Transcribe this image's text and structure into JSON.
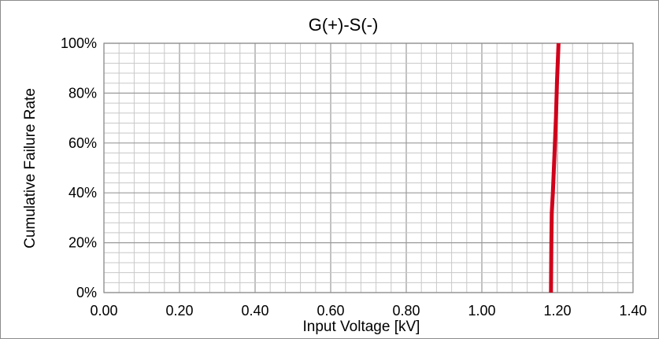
{
  "chart_data": {
    "type": "line",
    "title": "G(+)-S(-)",
    "xlabel": "Input Voltage [kV]",
    "ylabel": "Cumulative Failure Rate",
    "xlim": [
      0,
      1.4
    ],
    "ylim": [
      0,
      100
    ],
    "x_ticks": [
      "0.00",
      "0.20",
      "0.40",
      "0.60",
      "0.80",
      "1.00",
      "1.20",
      "1.40"
    ],
    "y_ticks": [
      "0%",
      "20%",
      "40%",
      "60%",
      "80%",
      "100%"
    ],
    "grid": true,
    "grid_minor": true,
    "legend": "none",
    "series": [
      {
        "color": "#d0021b",
        "points": [
          {
            "x": 1.183,
            "y": 0
          },
          {
            "x": 1.184,
            "y": 20
          },
          {
            "x": 1.185,
            "y": 32
          },
          {
            "x": 1.188,
            "y": 40
          },
          {
            "x": 1.192,
            "y": 55
          },
          {
            "x": 1.196,
            "y": 70
          },
          {
            "x": 1.199,
            "y": 85
          },
          {
            "x": 1.203,
            "y": 100
          }
        ]
      }
    ]
  }
}
